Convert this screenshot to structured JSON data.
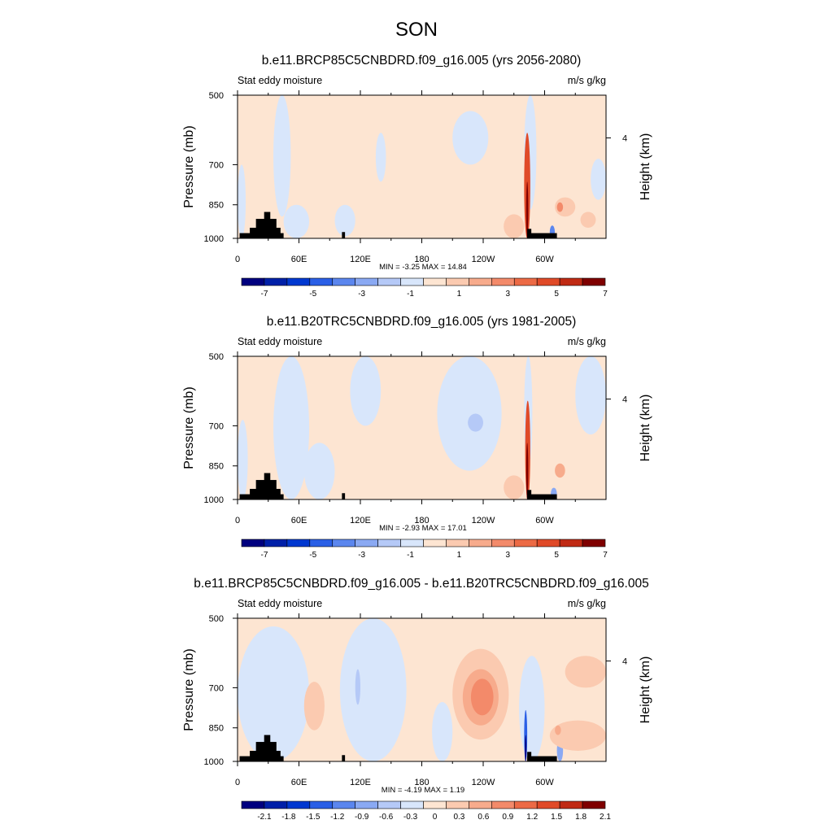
{
  "figure_title": "SON",
  "colors": {
    "bar_levels_blue": [
      "#00007f",
      "#0020a8",
      "#0038d0",
      "#2a5fe6",
      "#5b86ee",
      "#8aa9f3",
      "#b5c9f7",
      "#d8e6fb"
    ],
    "bar_levels_red": [
      "#fde5d2",
      "#fbcab0",
      "#f7ab8c",
      "#f38a6a",
      "#ec6a45",
      "#e04a28",
      "#c02a14",
      "#7f0000"
    ],
    "land": "#000000"
  },
  "chart_data": [
    {
      "type": "heatmap",
      "title": "b.e11.BRCP85C5CNBDRD.f09_g16.005 (yrs 2056-2080)",
      "left_label": "Stat eddy moisture",
      "right_label": "m/s g/kg",
      "xlabel": "",
      "ylabel": "Pressure (mb)",
      "y2label": "Height (km)",
      "x_ticks": [
        "0",
        "60E",
        "120E",
        "180",
        "120W",
        "60W"
      ],
      "x_tick_lon": [
        0,
        60,
        120,
        180,
        240,
        300
      ],
      "xlim": [
        0,
        360
      ],
      "y_ticks": [
        "500",
        "700",
        "850",
        "1000"
      ],
      "y_tick_values": [
        500,
        700,
        850,
        1000
      ],
      "ylim": [
        1000,
        500
      ],
      "y_scale": "log",
      "y2_ticks": [
        "4"
      ],
      "y2_tick_pressure": [
        615
      ],
      "stats": "MIN =  -3.25  MAX =  14.84",
      "colorbar_labels": [
        "-7",
        "-5",
        "-3",
        "-1",
        "1",
        "3",
        "5",
        "7"
      ],
      "colorbar_levels": [
        -8,
        -7,
        -6,
        -5,
        -4,
        -3,
        -2,
        -1,
        0,
        1,
        2,
        3,
        4,
        5,
        6,
        7,
        8
      ],
      "background_level": 0.5,
      "features": [
        {
          "lon": [
            35,
            52
          ],
          "p": [
            500,
            900
          ],
          "value": -0.5
        },
        {
          "lon": [
            0,
            8
          ],
          "p": [
            700,
            1000
          ],
          "value": -0.5
        },
        {
          "lon": [
            45,
            70
          ],
          "p": [
            850,
            1000
          ],
          "value": -0.5
        },
        {
          "lon": [
            95,
            115
          ],
          "p": [
            850,
            990
          ],
          "value": -0.5
        },
        {
          "lon": [
            135,
            145
          ],
          "p": [
            600,
            760
          ],
          "value": -0.5
        },
        {
          "lon": [
            210,
            245
          ],
          "p": [
            540,
            700
          ],
          "value": -0.5
        },
        {
          "lon": [
            280,
            292
          ],
          "p": [
            500,
            870
          ],
          "value": -0.5
        },
        {
          "lon": [
            345,
            360
          ],
          "p": [
            680,
            830
          ],
          "value": -0.5
        },
        {
          "lon": [
            260,
            280
          ],
          "p": [
            890,
            1000
          ],
          "value": 1.5
        },
        {
          "lon": [
            280,
            286
          ],
          "p": [
            600,
            1000
          ],
          "value": 5.5
        },
        {
          "lon": [
            282,
            284
          ],
          "p": [
            760,
            1000
          ],
          "value": 8.5
        },
        {
          "lon": [
            310,
            330
          ],
          "p": [
            820,
            900
          ],
          "value": 1.5
        },
        {
          "lon": [
            335,
            350
          ],
          "p": [
            880,
            950
          ],
          "value": 1.5
        },
        {
          "lon": [
            312,
            318
          ],
          "p": [
            840,
            880
          ],
          "value": 3.5
        },
        {
          "lon": [
            305,
            310
          ],
          "p": [
            940,
            1000
          ],
          "value": -3.5
        }
      ],
      "land": [
        {
          "lon": [
            2,
            45
          ],
          "p": [
            975,
            1000
          ]
        },
        {
          "lon": [
            12,
            42
          ],
          "p": [
            950,
            1000
          ]
        },
        {
          "lon": [
            18,
            38
          ],
          "p": [
            910,
            1000
          ]
        },
        {
          "lon": [
            26,
            32
          ],
          "p": [
            880,
            1000
          ]
        },
        {
          "lon": [
            102,
            105
          ],
          "p": [
            970,
            1000
          ]
        },
        {
          "lon": [
            283,
            312
          ],
          "p": [
            975,
            1000
          ]
        },
        {
          "lon": [
            283,
            287
          ],
          "p": [
            955,
            1000
          ]
        }
      ]
    },
    {
      "type": "heatmap",
      "title": "b.e11.B20TRC5CNBDRD.f09_g16.005 (yrs 1981-2005)",
      "left_label": "Stat eddy moisture",
      "right_label": "m/s g/kg",
      "xlabel": "",
      "ylabel": "Pressure (mb)",
      "y2label": "Height (km)",
      "x_ticks": [
        "0",
        "60E",
        "120E",
        "180",
        "120W",
        "60W"
      ],
      "x_tick_lon": [
        0,
        60,
        120,
        180,
        240,
        300
      ],
      "xlim": [
        0,
        360
      ],
      "y_ticks": [
        "500",
        "700",
        "850",
        "1000"
      ],
      "y_tick_values": [
        500,
        700,
        850,
        1000
      ],
      "ylim": [
        1000,
        500
      ],
      "y_scale": "log",
      "y2_ticks": [
        "4"
      ],
      "y2_tick_pressure": [
        615
      ],
      "stats": "MIN =  -2.93  MAX =  17.01",
      "colorbar_labels": [
        "-7",
        "-5",
        "-3",
        "-1",
        "1",
        "3",
        "5",
        "7"
      ],
      "colorbar_levels": [
        -8,
        -7,
        -6,
        -5,
        -4,
        -3,
        -2,
        -1,
        0,
        1,
        2,
        3,
        4,
        5,
        6,
        7,
        8
      ],
      "background_level": 0.5,
      "features": [
        {
          "lon": [
            35,
            70
          ],
          "p": [
            500,
            1000
          ],
          "value": -0.5
        },
        {
          "lon": [
            0,
            10
          ],
          "p": [
            680,
            1000
          ],
          "value": -0.5
        },
        {
          "lon": [
            65,
            95
          ],
          "p": [
            760,
            1000
          ],
          "value": -0.5
        },
        {
          "lon": [
            110,
            140
          ],
          "p": [
            500,
            700
          ],
          "value": -0.5
        },
        {
          "lon": [
            195,
            258
          ],
          "p": [
            500,
            870
          ],
          "value": -0.5
        },
        {
          "lon": [
            225,
            240
          ],
          "p": [
            660,
            720
          ],
          "value": -1.5
        },
        {
          "lon": [
            280,
            288
          ],
          "p": [
            500,
            860
          ],
          "value": -0.5
        },
        {
          "lon": [
            330,
            360
          ],
          "p": [
            500,
            730
          ],
          "value": -0.5
        },
        {
          "lon": [
            260,
            280
          ],
          "p": [
            890,
            1000
          ],
          "value": 1.5
        },
        {
          "lon": [
            281,
            286
          ],
          "p": [
            620,
            1000
          ],
          "value": 5.5
        },
        {
          "lon": [
            282,
            284
          ],
          "p": [
            760,
            1000
          ],
          "value": 8.5
        },
        {
          "lon": [
            310,
            320
          ],
          "p": [
            840,
            900
          ],
          "value": 2.5
        },
        {
          "lon": [
            306,
            312
          ],
          "p": [
            945,
            1000
          ],
          "value": -2.5
        }
      ],
      "land": [
        {
          "lon": [
            2,
            45
          ],
          "p": [
            975,
            1000
          ]
        },
        {
          "lon": [
            12,
            42
          ],
          "p": [
            950,
            1000
          ]
        },
        {
          "lon": [
            18,
            38
          ],
          "p": [
            910,
            1000
          ]
        },
        {
          "lon": [
            26,
            32
          ],
          "p": [
            880,
            1000
          ]
        },
        {
          "lon": [
            102,
            105
          ],
          "p": [
            970,
            1000
          ]
        },
        {
          "lon": [
            283,
            312
          ],
          "p": [
            975,
            1000
          ]
        },
        {
          "lon": [
            283,
            287
          ],
          "p": [
            955,
            1000
          ]
        }
      ]
    },
    {
      "type": "heatmap",
      "title": "b.e11.BRCP85C5CNBDRD.f09_g16.005 - b.e11.B20TRC5CNBDRD.f09_g16.005",
      "left_label": "Stat eddy moisture",
      "right_label": "m/s g/kg",
      "xlabel": "",
      "ylabel": "Pressure (mb)",
      "y2label": "Height (km)",
      "x_ticks": [
        "0",
        "60E",
        "120E",
        "180",
        "120W",
        "60W"
      ],
      "x_tick_lon": [
        0,
        60,
        120,
        180,
        240,
        300
      ],
      "xlim": [
        0,
        360
      ],
      "y_ticks": [
        "500",
        "700",
        "850",
        "1000"
      ],
      "y_tick_values": [
        500,
        700,
        850,
        1000
      ],
      "ylim": [
        1000,
        500
      ],
      "y_scale": "log",
      "y2_ticks": [
        "4"
      ],
      "y2_tick_pressure": [
        615
      ],
      "stats": "MIN =  -4.19  MAX =   1.19",
      "colorbar_labels": [
        "-2.1",
        "-1.8",
        "-1.5",
        "-1.2",
        "-0.9",
        "-0.6",
        "-0.3",
        "0",
        "0.3",
        "0.6",
        "0.9",
        "1.2",
        "1.5",
        "1.8",
        "2.1"
      ],
      "colorbar_levels": [
        -2.4,
        -2.1,
        -1.8,
        -1.5,
        -1.2,
        -0.9,
        -0.6,
        -0.3,
        0,
        0.3,
        0.6,
        0.9,
        1.2,
        1.5,
        1.8,
        2.1,
        2.4
      ],
      "background_level": 0.15,
      "features": [
        {
          "lon": [
            0,
            70
          ],
          "p": [
            520,
            1000
          ],
          "value": -0.15
        },
        {
          "lon": [
            100,
            165
          ],
          "p": [
            500,
            1000
          ],
          "value": -0.15
        },
        {
          "lon": [
            190,
            210
          ],
          "p": [
            750,
            1000
          ],
          "value": -0.15
        },
        {
          "lon": [
            275,
            300
          ],
          "p": [
            600,
            1000
          ],
          "value": -0.15
        },
        {
          "lon": [
            115,
            120
          ],
          "p": [
            640,
            760
          ],
          "value": -0.45
        },
        {
          "lon": [
            280,
            283
          ],
          "p": [
            780,
            1000
          ],
          "value": -1.35
        },
        {
          "lon": [
            281,
            282
          ],
          "p": [
            880,
            1000
          ],
          "value": -2.5
        },
        {
          "lon": [
            312,
            318
          ],
          "p": [
            900,
            1000
          ],
          "value": -0.75
        },
        {
          "lon": [
            210,
            265
          ],
          "p": [
            580,
            900
          ],
          "value": 0.45
        },
        {
          "lon": [
            220,
            255
          ],
          "p": [
            640,
            840
          ],
          "value": 0.75
        },
        {
          "lon": [
            228,
            250
          ],
          "p": [
            670,
            800
          ],
          "value": 1.05
        },
        {
          "lon": [
            65,
            85
          ],
          "p": [
            680,
            860
          ],
          "value": 0.45
        },
        {
          "lon": [
            320,
            360
          ],
          "p": [
            600,
            700
          ],
          "value": 0.45
        },
        {
          "lon": [
            305,
            360
          ],
          "p": [
            820,
            950
          ],
          "value": 0.45
        },
        {
          "lon": [
            310,
            316
          ],
          "p": [
            840,
            880
          ],
          "value": 0.75
        }
      ],
      "land": [
        {
          "lon": [
            2,
            45
          ],
          "p": [
            975,
            1000
          ]
        },
        {
          "lon": [
            12,
            42
          ],
          "p": [
            950,
            1000
          ]
        },
        {
          "lon": [
            18,
            38
          ],
          "p": [
            910,
            1000
          ]
        },
        {
          "lon": [
            26,
            32
          ],
          "p": [
            880,
            1000
          ]
        },
        {
          "lon": [
            102,
            105
          ],
          "p": [
            970,
            1000
          ]
        },
        {
          "lon": [
            283,
            312
          ],
          "p": [
            975,
            1000
          ]
        },
        {
          "lon": [
            283,
            287
          ],
          "p": [
            955,
            1000
          ]
        }
      ]
    }
  ]
}
